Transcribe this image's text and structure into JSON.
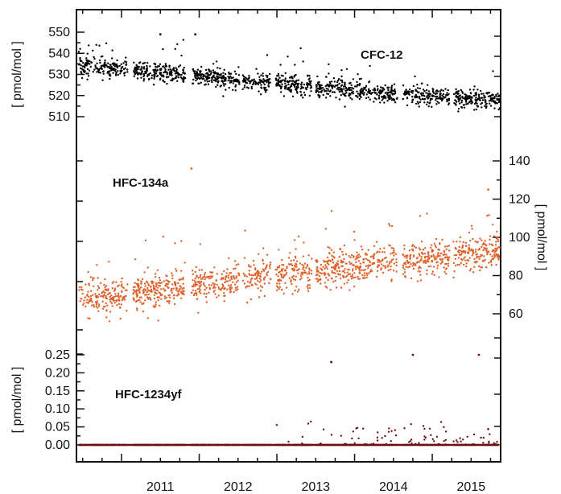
{
  "chart_data": {
    "type": "scatter",
    "x_ticks": [
      "2011",
      "2012",
      "2013",
      "2014",
      "2015"
    ],
    "x_range": [
      2010.42,
      2015.88
    ],
    "panels": [
      {
        "name": "CFC-12",
        "label": "CFC-12",
        "axis": "left",
        "ylabel": "[ pmol/mol ]",
        "ylim": [
          503,
          557
        ],
        "ticks": [
          "510",
          "520",
          "530",
          "540",
          "550"
        ],
        "tick_values": [
          510,
          520,
          530,
          540,
          550
        ],
        "color": "#000000",
        "trend": [
          [
            2010.45,
            534
          ],
          [
            2011.5,
            531
          ],
          [
            2012.5,
            527.5
          ],
          [
            2013.5,
            524
          ],
          [
            2014.5,
            520.5
          ],
          [
            2015.88,
            518
          ]
        ],
        "noise": 2.2,
        "spike_max": 18
      },
      {
        "name": "HFC-134a",
        "label": "HFC-134a",
        "axis": "right",
        "ylabel": "[ pmol/mol ]",
        "ylim": [
          42,
          152
        ],
        "ticks": [
          "60",
          "80",
          "100",
          "120",
          "140"
        ],
        "tick_values": [
          60,
          80,
          100,
          120,
          140
        ],
        "color": "#e0622a",
        "trend": [
          [
            2010.45,
            67
          ],
          [
            2011.5,
            72
          ],
          [
            2012.5,
            78
          ],
          [
            2013.5,
            82
          ],
          [
            2014.5,
            87
          ],
          [
            2015.88,
            93
          ]
        ],
        "noise": 4.5,
        "spike_max": 38
      },
      {
        "name": "HFC-1234yf",
        "label": "HFC-1234yf",
        "axis": "left",
        "ylabel": "[ pmol/mol ]",
        "ylim": [
          -0.015,
          0.275
        ],
        "ticks": [
          "0.00",
          "0.05",
          "0.10",
          "0.15",
          "0.20",
          "0.25"
        ],
        "tick_values": [
          0.0,
          0.05,
          0.1,
          0.15,
          0.2,
          0.25
        ],
        "color": "#6b0f0f",
        "trend": [
          [
            2010.45,
            0.0
          ],
          [
            2015.88,
            0.0
          ]
        ],
        "noise": 0.0,
        "spike_max": 0.09
      }
    ],
    "highlight_points": [
      {
        "series": "HFC-1234yf",
        "x": 2014.75,
        "y": 0.25
      },
      {
        "series": "HFC-1234yf",
        "x": 2015.6,
        "y": 0.25
      },
      {
        "series": "HFC-1234yf",
        "x": 2013.7,
        "y": 0.23
      },
      {
        "series": "HFC-134a",
        "x": 2011.9,
        "y": 136
      },
      {
        "series": "HFC-134a",
        "x": 2015.72,
        "y": 125
      },
      {
        "series": "CFC-12",
        "x": 2011.95,
        "y": 549
      },
      {
        "series": "CFC-12",
        "x": 2011.5,
        "y": 549
      }
    ]
  }
}
